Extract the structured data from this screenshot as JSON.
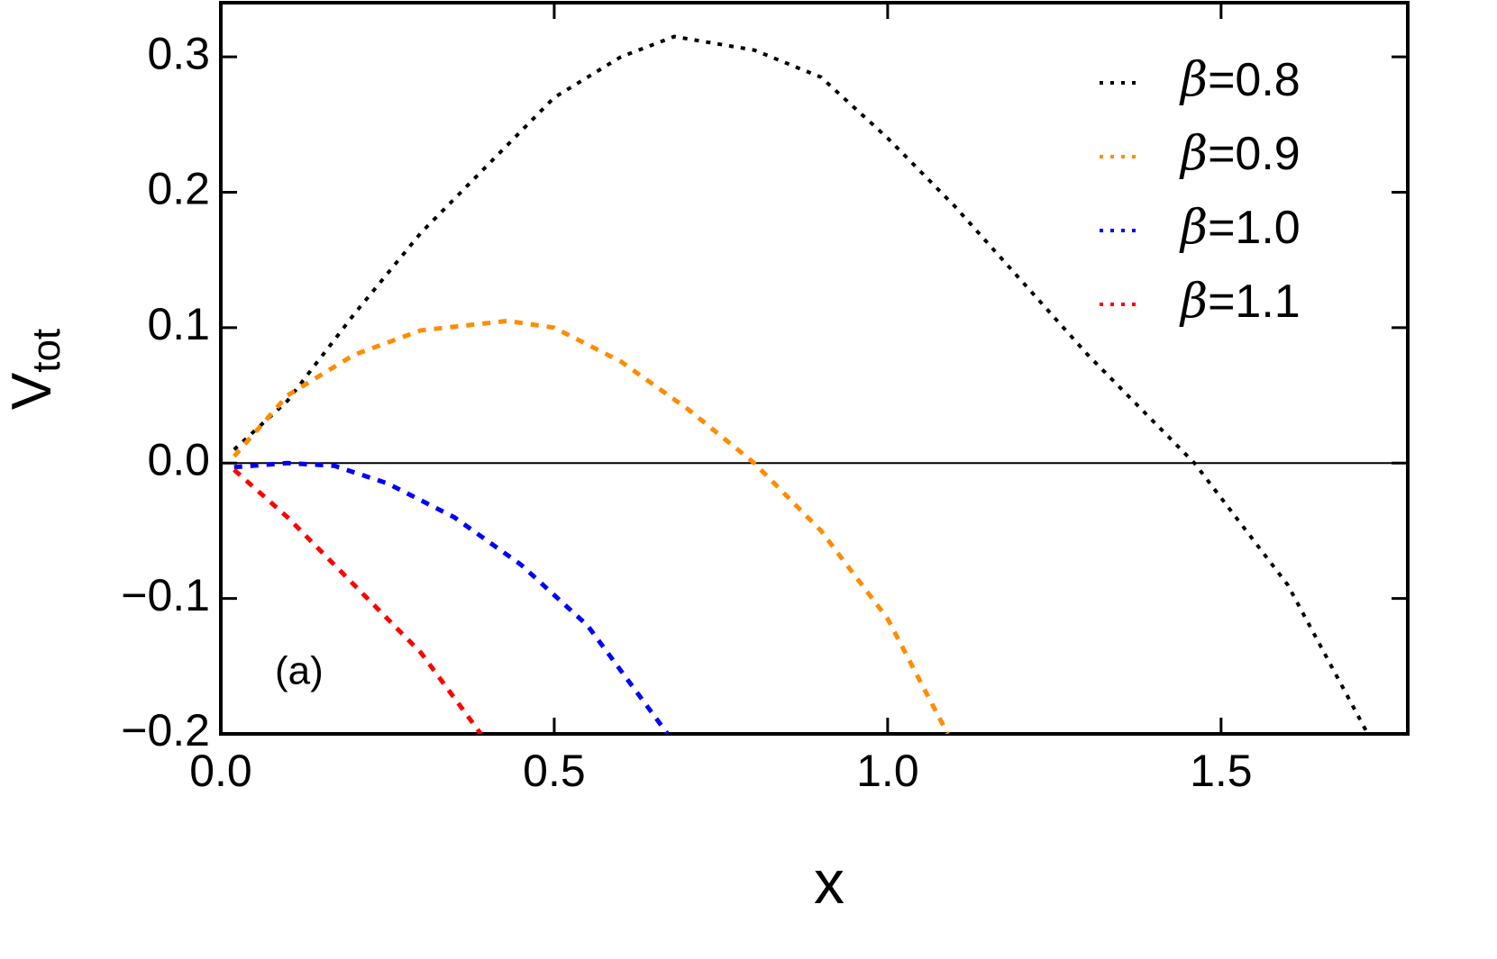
{
  "chart_data": {
    "type": "line",
    "xlabel": "x",
    "ylabel": {
      "text": "V",
      "subscript": "tot"
    },
    "annotation": "(a)",
    "xlim": [
      0,
      1.78
    ],
    "ylim": [
      -0.2,
      0.34
    ],
    "xticks": [
      {
        "value": 0,
        "label": "0.0"
      },
      0.5,
      {
        "value": 1,
        "label": "1.0"
      },
      1.5
    ],
    "yticks": [
      {
        "value": -0.2,
        "label": "−0.2"
      },
      {
        "value": -0.1,
        "label": "−0.1"
      },
      {
        "value": 0,
        "label": "0.0"
      },
      0.1,
      0.2,
      0.3
    ],
    "legend": "upper right",
    "series": [
      {
        "name": "β=0.8",
        "color": "#000000",
        "x": [
          0.02,
          0.1,
          0.2,
          0.3,
          0.4,
          0.5,
          0.6,
          0.68,
          0.8,
          0.9,
          1.0,
          1.1,
          1.2,
          1.3,
          1.4,
          1.46,
          1.6,
          1.72
        ],
        "values": [
          0.01,
          0.046,
          0.11,
          0.17,
          0.22,
          0.27,
          0.3,
          0.315,
          0.305,
          0.285,
          0.24,
          0.19,
          0.135,
          0.08,
          0.03,
          0,
          -0.09,
          -0.2
        ]
      },
      {
        "name": "β=0.9",
        "color": "#ff8c00",
        "x": [
          0.02,
          0.1,
          0.2,
          0.3,
          0.43,
          0.5,
          0.6,
          0.7,
          0.8,
          0.9,
          1.0,
          1.09
        ],
        "values": [
          0.005,
          0.05,
          0.08,
          0.098,
          0.105,
          0.1,
          0.075,
          0.04,
          0,
          -0.05,
          -0.115,
          -0.2
        ]
      },
      {
        "name": "β=1.0",
        "color": "#0000ff",
        "x": [
          0.02,
          0.1,
          0.17,
          0.25,
          0.35,
          0.45,
          0.55,
          0.67
        ],
        "values": [
          -0.003,
          0,
          -0.002,
          -0.015,
          -0.04,
          -0.075,
          -0.12,
          -0.2
        ]
      },
      {
        "name": "β=1.1",
        "color": "#ff0000",
        "x": [
          0.02,
          0.1,
          0.2,
          0.3,
          0.39
        ],
        "values": [
          -0.005,
          -0.04,
          -0.09,
          -0.14,
          -0.2
        ]
      }
    ]
  }
}
